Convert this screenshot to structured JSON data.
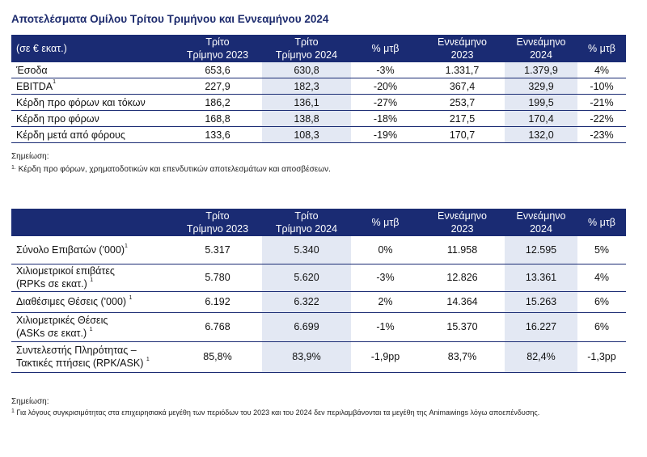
{
  "title": "Αποτελέσματα Ομίλου Τρίτου Τριμήνου και Εννεαμήνου 2024",
  "table1": {
    "header": [
      "(σε € εκατ.)",
      "Τρίτο\nΤρίμηνο 2023",
      "Τρίτο\nΤρίμηνο 2024",
      "% μτβ",
      "Εννεάμηνο\n2023",
      "Εννεάμηνο\n2024",
      "% μτβ"
    ],
    "rows": [
      {
        "label": "Έσοδα",
        "sup": "",
        "values": [
          "653,6",
          "630,8",
          "-3%",
          "1.331,7",
          "1.379,9",
          "4%"
        ]
      },
      {
        "label": "EBITDA",
        "sup": "1",
        "values": [
          "227,9",
          "182,3",
          "-20%",
          "367,4",
          "329,9",
          "-10%"
        ]
      },
      {
        "label": "Κέρδη προ φόρων και τόκων",
        "sup": "",
        "values": [
          "186,2",
          "136,1",
          "-27%",
          "253,7",
          "199,5",
          "-21%"
        ]
      },
      {
        "label": "Κέρδη προ φόρων",
        "sup": "",
        "values": [
          "168,8",
          "138,8",
          "-18%",
          "217,5",
          "170,4",
          "-22%"
        ]
      },
      {
        "label": "Κέρδη μετά από φόρους",
        "sup": "",
        "values": [
          "133,6",
          "108,3",
          "-19%",
          "170,7",
          "132,0",
          "-23%"
        ]
      }
    ],
    "note_title": "Σημείωση:",
    "note_sup": "1.",
    "note_text": "Κέρδη προ φόρων, χρηματοδοτικών και επενδυτικών αποτελεσμάτων και αποσβέσεων."
  },
  "table2": {
    "header": [
      "",
      "Τρίτο\nΤρίμηνο 2023",
      "Τρίτο\nΤρίμηνο 2024",
      "% μτβ",
      "Εννεάμηνο\n2023",
      "Εννεάμηνο\n2024",
      "% μτβ"
    ],
    "rows": [
      {
        "label": "Σύνολο Επιβατών ('000)",
        "sup": "1",
        "values": [
          "5.317",
          "5.340",
          "0%",
          "11.958",
          "12.595",
          "5%"
        ]
      },
      {
        "label": "Χιλιομετρικοί επιβάτες\n(RPKs σε εκατ.) ",
        "sup": "1",
        "values": [
          "5.780",
          "5.620",
          "-3%",
          "12.826",
          "13.361",
          "4%"
        ]
      },
      {
        "label": "Διαθέσιμες Θέσεις ('000) ",
        "sup": "1",
        "values": [
          "6.192",
          "6.322",
          "2%",
          "14.364",
          "15.263",
          "6%"
        ]
      },
      {
        "label": "Χιλιομετρικές Θέσεις\n(ASKs σε εκατ.) ",
        "sup": "1",
        "values": [
          "6.768",
          "6.699",
          "-1%",
          "15.370",
          "16.227",
          "6%"
        ]
      },
      {
        "label": "Συντελεστής Πληρότητας –\nΤακτικές πτήσεις (RPK/ASK) ",
        "sup": "1",
        "values": [
          "85,8%",
          "83,9%",
          "-1,9pp",
          "83,7%",
          "82,4%",
          "-1,3pp"
        ]
      }
    ],
    "note_title": "Σημείωση:",
    "note_sup": "1",
    "note_text": "Για λόγους συγκρισιμότητας στα επιχειρησιακά μεγέθη των περιόδων του 2023 και του 2024 δεν περιλαμβάνονται τα μεγέθη της Animawings λόγω αποεπένδυσης."
  }
}
